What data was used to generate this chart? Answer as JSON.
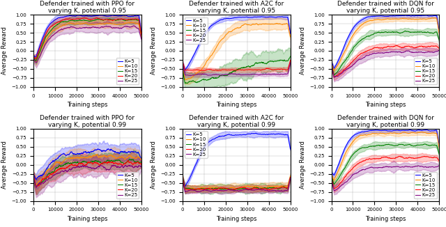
{
  "titles": [
    [
      "Defender trained with PPO for\nvarying K, potential 0.95",
      "Defender trained with A2C for\nvarying K, potential 0.95",
      "Defender trained with DQN for\nvarying K, potential 0.95"
    ],
    [
      "Defender trained with PPO for\nvarying K, potential 0.99",
      "Defender trained with A2C for\nvarying K, potential 0.99",
      "Defender trained with DQN for\nvarying K, potential 0.99"
    ]
  ],
  "xlabel": "Training steps",
  "ylabel": "Average Reward",
  "xlim": [
    0,
    50000
  ],
  "ylim": [
    -1.0,
    1.0
  ],
  "yticks": [
    -1.0,
    -0.75,
    -0.5,
    -0.25,
    0.0,
    0.25,
    0.5,
    0.75,
    1.0
  ],
  "xticks": [
    0,
    10000,
    20000,
    30000,
    40000,
    50000
  ],
  "xtick_labels": [
    "0",
    "10000",
    "20000",
    "30000",
    "40000",
    "50000"
  ],
  "colors": [
    "#0000FF",
    "#FF8C00",
    "#008000",
    "#FF0000",
    "#800080"
  ],
  "legend_labels": [
    "K=5",
    "K=10",
    "K=15",
    "K=20",
    "K=25"
  ],
  "title_fontsize": 6.5,
  "axis_fontsize": 6,
  "tick_fontsize": 5,
  "legend_fontsize": 5,
  "n_steps": 500,
  "legend_locs": [
    [
      "lower right",
      "upper left",
      "lower right"
    ],
    [
      "lower right",
      "upper left",
      "lower right"
    ]
  ]
}
